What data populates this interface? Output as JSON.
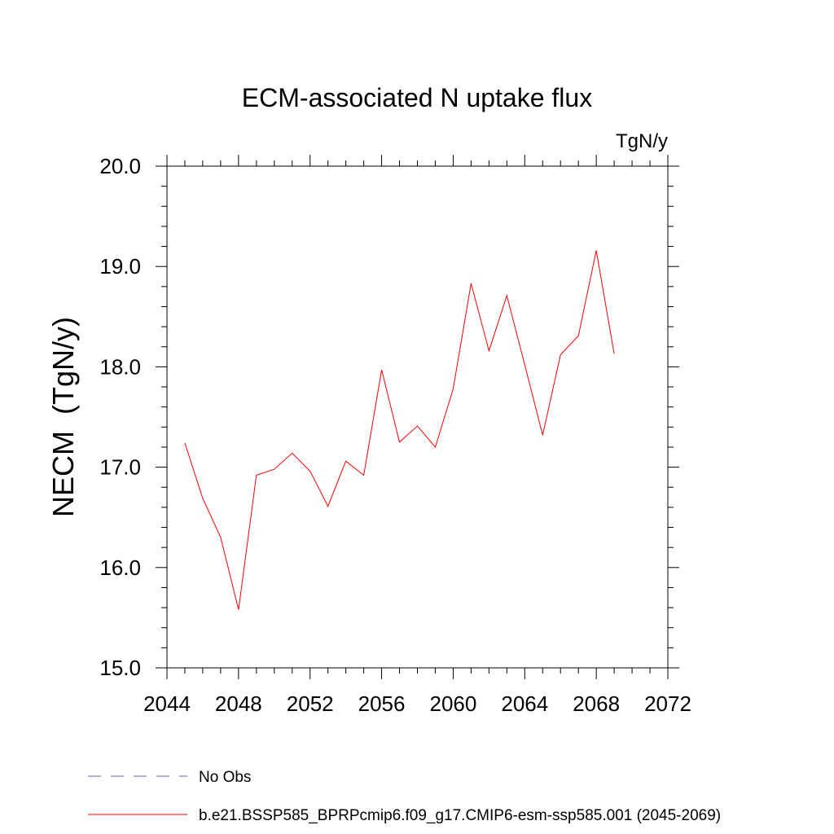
{
  "chart_data": {
    "type": "line",
    "title": "ECM-associated N uptake flux",
    "units_label": "TgN/y",
    "ylabel": "NECM  (TgN/y)",
    "xlabel": "",
    "xlim": [
      2044,
      2072
    ],
    "ylim": [
      15.0,
      20.0
    ],
    "x_ticks": [
      2044,
      2048,
      2052,
      2056,
      2060,
      2064,
      2068,
      2072
    ],
    "x_tick_labels": [
      "2044",
      "2048",
      "2052",
      "2056",
      "2060",
      "2064",
      "2068",
      "2072"
    ],
    "y_ticks": [
      15.0,
      16.0,
      17.0,
      18.0,
      19.0,
      20.0
    ],
    "y_tick_labels": [
      "15.0",
      "16.0",
      "17.0",
      "18.0",
      "19.0",
      "20.0"
    ],
    "grid": false,
    "legend_position": "bottom",
    "series": [
      {
        "name": "b.e21.BSSP585_BPRPcmip6.f09_g17.CMIP6-esm-ssp585.001 (2045-2069)",
        "color": "#ff0000",
        "style": "solid",
        "x": [
          2045,
          2046,
          2047,
          2048,
          2049,
          2050,
          2051,
          2052,
          2053,
          2054,
          2055,
          2056,
          2057,
          2058,
          2059,
          2060,
          2061,
          2062,
          2063,
          2064,
          2065,
          2066,
          2067,
          2068,
          2069
        ],
        "values": [
          17.24,
          16.69,
          16.3,
          15.58,
          16.92,
          16.98,
          17.14,
          16.96,
          16.61,
          17.06,
          16.92,
          17.97,
          17.25,
          17.41,
          17.2,
          17.78,
          18.83,
          18.16,
          18.71,
          18.02,
          17.32,
          18.12,
          18.31,
          19.16,
          18.13
        ]
      }
    ],
    "legend": [
      {
        "label": "No Obs",
        "color": "#6666aa",
        "style": "dashed"
      },
      {
        "label": "b.e21.BSSP585_BPRPcmip6.f09_g17.CMIP6-esm-ssp585.001 (2045-2069)",
        "color": "#ff0000",
        "style": "solid"
      }
    ]
  }
}
